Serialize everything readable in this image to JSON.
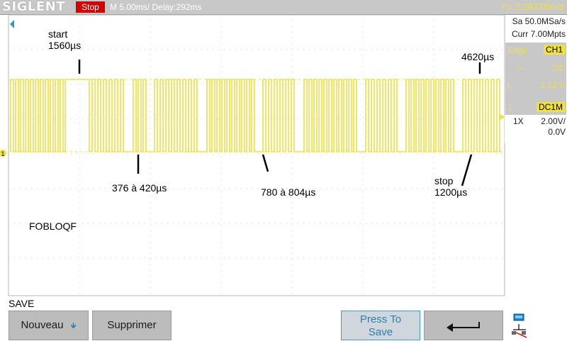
{
  "app": {
    "brand": "SIGLENT",
    "run_state": "Stop",
    "timebase": "M 5.00ms/ Delay:292ms",
    "frequency": "f = 2.29378kHz"
  },
  "side_panel": {
    "sample_rate": "Sa 50.0MSa/s",
    "memory_depth": "Curr 7.00Mpts",
    "trigger": {
      "type_label": "Edge",
      "source": "CH1",
      "slope_symbol": "⌐",
      "coupling": "DC",
      "level_symbol": "L",
      "level": "2.12 V"
    },
    "channel": {
      "number": "1",
      "coupling": "DC1M",
      "probe": "1X",
      "scale": "2.00V/",
      "offset": "0.0V"
    }
  },
  "annotations": {
    "start": "start\n1560µs",
    "gap": "376 à 420µs",
    "long_gap": "780 à 804µs",
    "stop": "stop\n1200µs",
    "high": "4620µs",
    "name": "FOBLOQF"
  },
  "menu": {
    "title": "SAVE",
    "new_label": "Nouveau",
    "delete_label": "Supprimer",
    "press_save_label": "Press To\nSave"
  },
  "colors": {
    "trace": "#f0e040",
    "stop": "#d40000",
    "bar": "#c8c8c8",
    "button": "#bcbcbc",
    "accent": "#3aa0c8"
  },
  "icons": {
    "back": "return-arrow-icon",
    "trigger_marker": "trigger-position-icon",
    "network": "network-icon",
    "channel_marker": "channel-1-marker-icon"
  }
}
